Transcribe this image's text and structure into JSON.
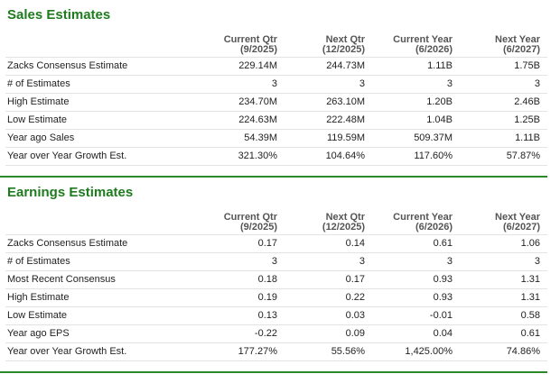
{
  "sections": [
    {
      "title": "Sales Estimates",
      "columns": [
        {
          "name": "Current Qtr",
          "period": "(9/2025)"
        },
        {
          "name": "Next Qtr",
          "period": "(12/2025)"
        },
        {
          "name": "Current Year",
          "period": "(6/2026)"
        },
        {
          "name": "Next Year",
          "period": "(6/2027)"
        }
      ],
      "rows": [
        {
          "label": "Zacks Consensus Estimate",
          "values": [
            "229.14M",
            "244.73M",
            "1.11B",
            "1.75B"
          ]
        },
        {
          "label": "# of Estimates",
          "values": [
            "3",
            "3",
            "3",
            "3"
          ]
        },
        {
          "label": "High Estimate",
          "values": [
            "234.70M",
            "263.10M",
            "1.20B",
            "2.46B"
          ]
        },
        {
          "label": "Low Estimate",
          "values": [
            "224.63M",
            "222.48M",
            "1.04B",
            "1.25B"
          ]
        },
        {
          "label": "Year ago Sales",
          "values": [
            "54.39M",
            "119.59M",
            "509.37M",
            "1.11B"
          ]
        },
        {
          "label": "Year over Year Growth Est.",
          "values": [
            "321.30%",
            "104.64%",
            "117.60%",
            "57.87%"
          ]
        }
      ]
    },
    {
      "title": "Earnings Estimates",
      "columns": [
        {
          "name": "Current Qtr",
          "period": "(9/2025)"
        },
        {
          "name": "Next Qtr",
          "period": "(12/2025)"
        },
        {
          "name": "Current Year",
          "period": "(6/2026)"
        },
        {
          "name": "Next Year",
          "period": "(6/2027)"
        }
      ],
      "rows": [
        {
          "label": "Zacks Consensus Estimate",
          "values": [
            "0.17",
            "0.14",
            "0.61",
            "1.06"
          ]
        },
        {
          "label": "# of Estimates",
          "values": [
            "3",
            "3",
            "3",
            "3"
          ]
        },
        {
          "label": "Most Recent Consensus",
          "values": [
            "0.18",
            "0.17",
            "0.93",
            "1.31"
          ]
        },
        {
          "label": "High Estimate",
          "values": [
            "0.19",
            "0.22",
            "0.93",
            "1.31"
          ]
        },
        {
          "label": "Low Estimate",
          "values": [
            "0.13",
            "0.03",
            "-0.01",
            "0.58"
          ]
        },
        {
          "label": "Year ago EPS",
          "values": [
            "-0.22",
            "0.09",
            "0.04",
            "0.61"
          ]
        },
        {
          "label": "Year over Year Growth Est.",
          "values": [
            "177.27%",
            "55.56%",
            "1,425.00%",
            "74.86%"
          ]
        }
      ]
    }
  ]
}
